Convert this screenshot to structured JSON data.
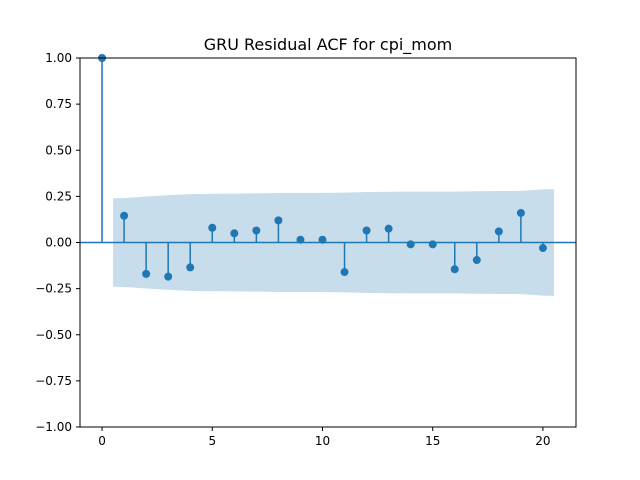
{
  "chart_data": {
    "type": "stem",
    "title": "GRU Residual ACF for cpi_mom",
    "xlabel": "",
    "ylabel": "",
    "xlim": [
      -1,
      21.5
    ],
    "ylim": [
      -1.0,
      1.0
    ],
    "xticks": [
      0,
      5,
      10,
      15,
      20
    ],
    "yticks": [
      1.0,
      0.75,
      0.5,
      0.25,
      0.0,
      -0.25,
      -0.5,
      -0.75,
      -1.0
    ],
    "ytick_labels": [
      "1.00",
      "0.75",
      "0.50",
      "0.25",
      "0.00",
      "−0.25",
      "−0.50",
      "−0.75",
      "−1.00"
    ],
    "xtick_labels": [
      "0",
      "5",
      "10",
      "15",
      "20"
    ],
    "lags": [
      0,
      1,
      2,
      3,
      4,
      5,
      6,
      7,
      8,
      9,
      10,
      11,
      12,
      13,
      14,
      15,
      16,
      17,
      18,
      19,
      20
    ],
    "acf": [
      1.0,
      0.145,
      -0.17,
      -0.185,
      -0.135,
      0.08,
      0.05,
      0.065,
      0.12,
      0.015,
      0.015,
      -0.16,
      0.065,
      0.075,
      -0.01,
      -0.01,
      -0.145,
      -0.095,
      0.06,
      0.16,
      -0.03
    ],
    "confidence_band": {
      "x": [
        0.5,
        1,
        2,
        3,
        4,
        5,
        6,
        7,
        8,
        9,
        10,
        11,
        12,
        13,
        14,
        15,
        16,
        17,
        18,
        19,
        20,
        20.5
      ],
      "upper": [
        0.24,
        0.241,
        0.249,
        0.257,
        0.262,
        0.264,
        0.265,
        0.266,
        0.268,
        0.268,
        0.268,
        0.27,
        0.274,
        0.275,
        0.276,
        0.276,
        0.276,
        0.278,
        0.279,
        0.28,
        0.288,
        0.289
      ]
    },
    "colors": {
      "stem": "#1f77b4",
      "band": "#1f77b4",
      "band_opacity": 0.25,
      "axis": "#000000"
    },
    "grid": false,
    "legend": "none"
  }
}
